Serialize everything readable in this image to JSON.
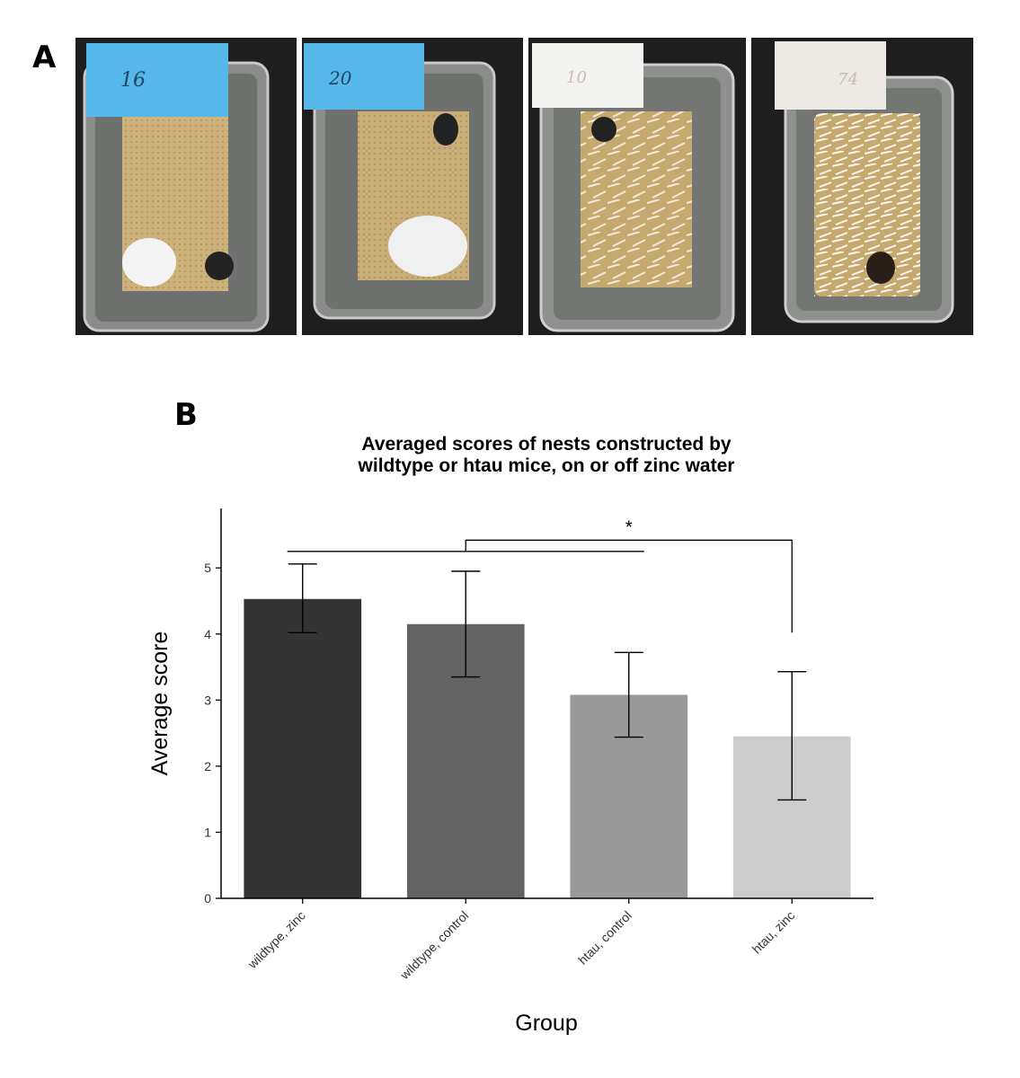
{
  "panel_a": {
    "label": "A",
    "photos": [
      {
        "tag": "16",
        "tag_color": "#56b8ea",
        "shred": "low"
      },
      {
        "tag": "20",
        "tag_color": "#56b8ea",
        "shred": "low-medium"
      },
      {
        "tag": "10",
        "tag_color": "#f3f3f1",
        "shred": "high"
      },
      {
        "tag": "74",
        "tag_color": "#ece8e3",
        "shred": "very-high"
      }
    ]
  },
  "panel_b": {
    "label": "B",
    "chart_data": {
      "type": "bar",
      "title_lines": [
        "Averaged scores of nests constructed by",
        "wildtype or htau mice, on or off zinc water"
      ],
      "xlabel": "Group",
      "ylabel": "Average score",
      "ylim": [
        0,
        5.9
      ],
      "yticks": [
        0,
        1,
        2,
        3,
        4,
        5
      ],
      "grid": false,
      "categories": [
        "wildtype, zinc",
        "wildtype, control",
        "htau, control",
        "htau, zinc"
      ],
      "values": [
        4.53,
        4.15,
        3.08,
        2.45
      ],
      "error": [
        {
          "low": 4.02,
          "high": 5.06
        },
        {
          "low": 3.35,
          "high": 4.95
        },
        {
          "low": 2.44,
          "high": 3.72
        },
        {
          "low": 1.49,
          "high": 3.43
        }
      ],
      "bar_colors": [
        "#333333",
        "#636363",
        "#999999",
        "#cccccc"
      ],
      "significance": {
        "label": "*",
        "group_span": [
          "wildtype, zinc",
          "htau, control"
        ],
        "compared_to": "htau, zinc"
      }
    }
  }
}
